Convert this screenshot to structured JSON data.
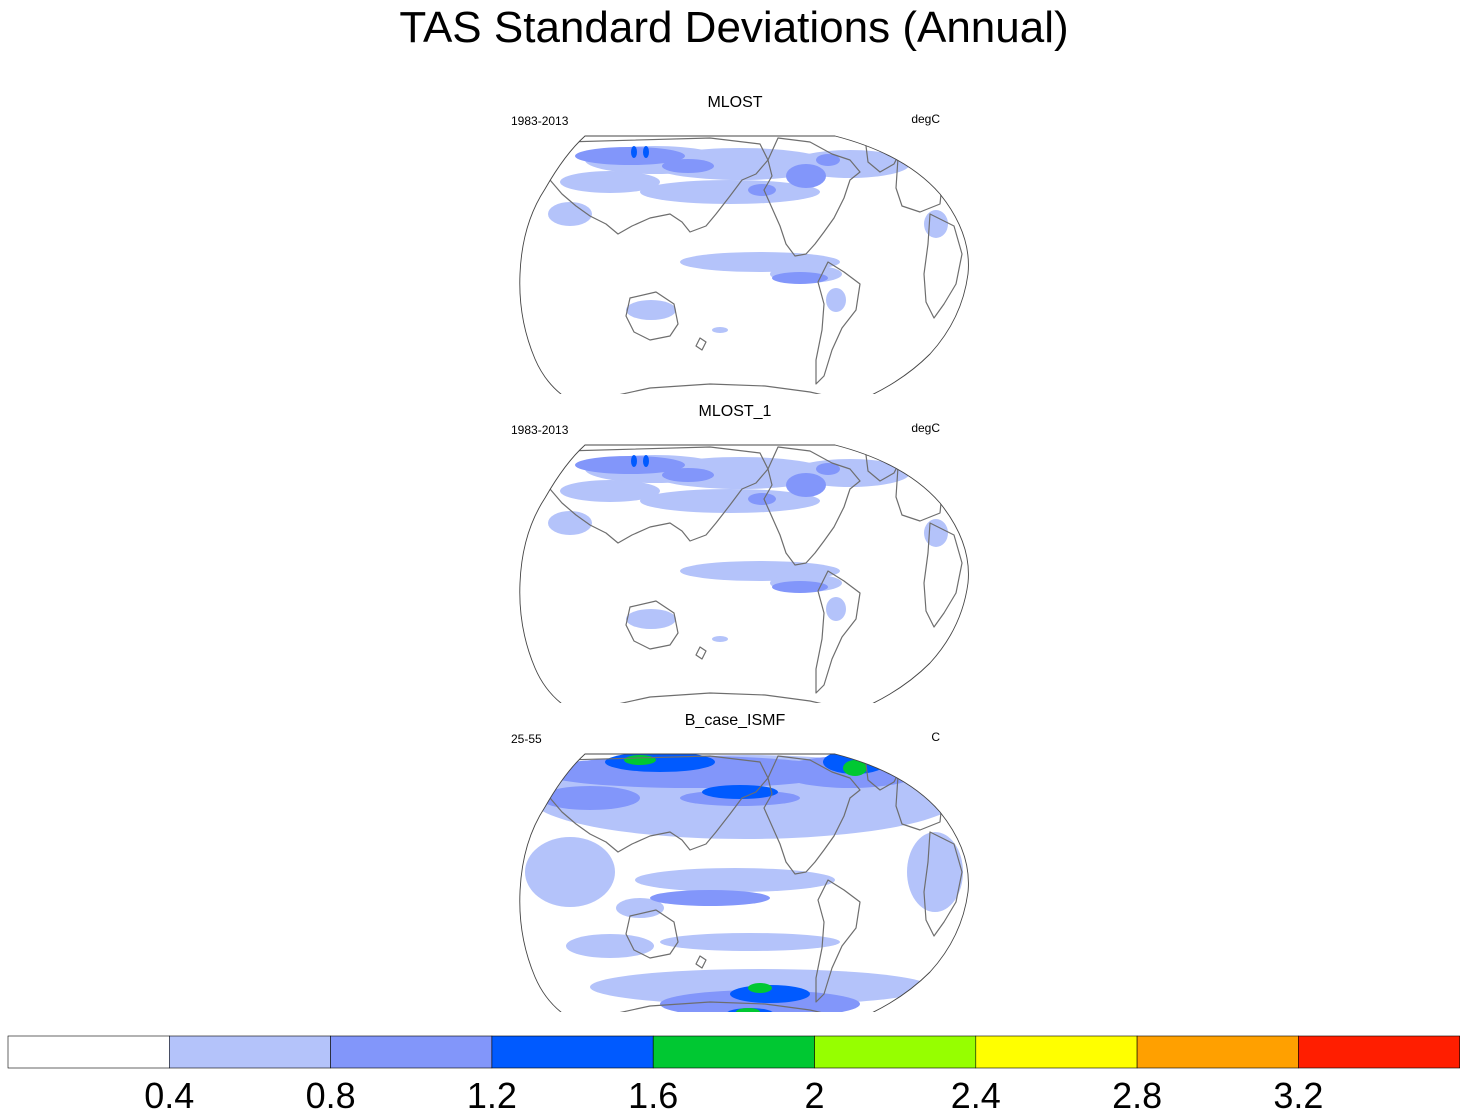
{
  "chart_data": {
    "type": "heatmap",
    "title": "TAS Standard Deviations (Annual)",
    "projection": "Robinson, Pacific-centered",
    "colorbar": {
      "levels": [
        0.4,
        0.8,
        1.2,
        1.6,
        2,
        2.4,
        2.8,
        3.2
      ],
      "tick_labels": [
        "0.4",
        "0.8",
        "1.2",
        "1.6",
        "2",
        "2.4",
        "2.8",
        "3.2"
      ],
      "colors": [
        "#ffffff",
        "#b4c3fa",
        "#8296fa",
        "#005aff",
        "#00c832",
        "#96ff00",
        "#ffff00",
        "#ffa000",
        "#ff1e00"
      ]
    },
    "panels": [
      {
        "title": "MLOST",
        "left_label": "1983-2013",
        "right_label": "degC"
      },
      {
        "title": "MLOST_1",
        "left_label": "1983-2013",
        "right_label": "degC"
      },
      {
        "title": "B_case_ISMF",
        "left_label": "25-55",
        "right_label": "C"
      }
    ]
  }
}
